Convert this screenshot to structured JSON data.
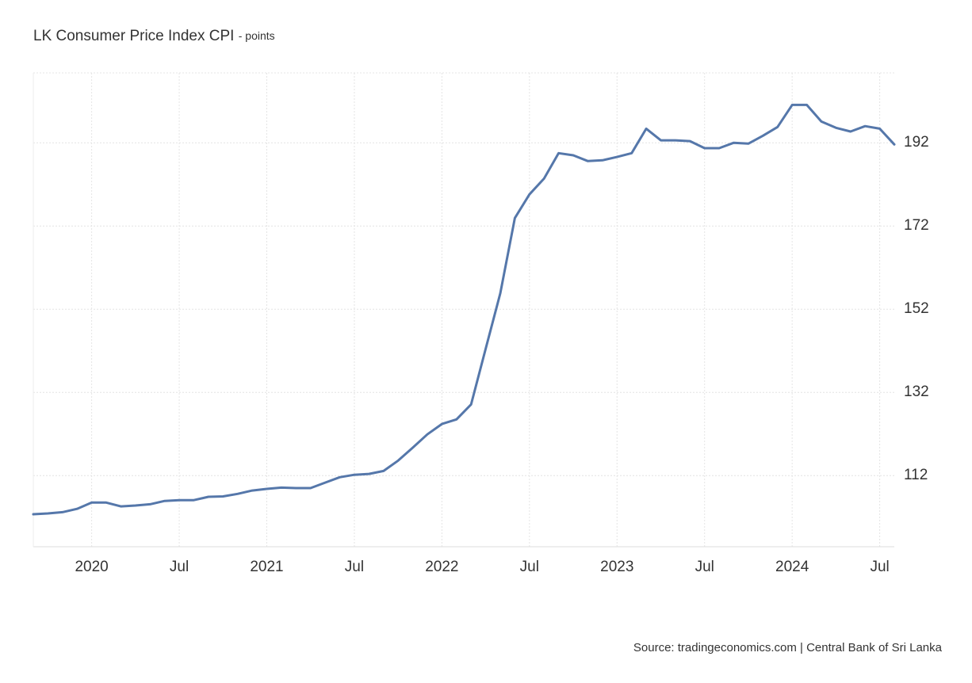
{
  "chart_data": {
    "type": "line",
    "title": "LK Consumer Price Index CPI",
    "subtitle": "- points",
    "source": "Source: tradingeconomics.com | Central Bank of Sri Lanka",
    "x": [
      "2019-09",
      "2019-10",
      "2019-11",
      "2019-12",
      "2020-01",
      "2020-02",
      "2020-03",
      "2020-04",
      "2020-05",
      "2020-06",
      "2020-07",
      "2020-08",
      "2020-09",
      "2020-10",
      "2020-11",
      "2020-12",
      "2021-01",
      "2021-02",
      "2021-03",
      "2021-04",
      "2021-05",
      "2021-06",
      "2021-07",
      "2021-08",
      "2021-09",
      "2021-10",
      "2021-11",
      "2021-12",
      "2022-01",
      "2022-02",
      "2022-03",
      "2022-04",
      "2022-05",
      "2022-06",
      "2022-07",
      "2022-08",
      "2022-09",
      "2022-10",
      "2022-11",
      "2022-12",
      "2023-01",
      "2023-02",
      "2023-03",
      "2023-04",
      "2023-05",
      "2023-06",
      "2023-07",
      "2023-08",
      "2023-09",
      "2023-10",
      "2023-11",
      "2023-12",
      "2024-01",
      "2024-02",
      "2024-03",
      "2024-04",
      "2024-05",
      "2024-06",
      "2024-07",
      "2024-08"
    ],
    "series": [
      {
        "name": "CPI",
        "color": "#5577aa",
        "values": [
          102.7,
          102.9,
          103.2,
          104.0,
          105.5,
          105.5,
          104.6,
          104.8,
          105.1,
          105.9,
          106.1,
          106.1,
          106.9,
          107.0,
          107.6,
          108.4,
          108.8,
          109.1,
          109.0,
          109.0,
          110.3,
          111.6,
          112.2,
          112.4,
          113.1,
          115.6,
          118.7,
          121.9,
          124.4,
          125.5,
          129.1,
          142.5,
          155.8,
          173.9,
          179.6,
          183.4,
          189.5,
          189.0,
          187.6,
          187.8,
          188.6,
          189.5,
          195.4,
          192.6,
          192.6,
          192.4,
          190.7,
          190.7,
          192.0,
          191.8,
          193.7,
          195.8,
          201.1,
          201.1,
          197.1,
          195.6,
          194.7,
          196.0,
          195.4,
          191.6
        ]
      }
    ],
    "xlim": [
      "2019-09",
      "2024-08"
    ],
    "xticks": [
      {
        "value": "2020-01",
        "label": "2020"
      },
      {
        "value": "2020-07",
        "label": "Jul"
      },
      {
        "value": "2021-01",
        "label": "2021"
      },
      {
        "value": "2021-07",
        "label": "Jul"
      },
      {
        "value": "2022-01",
        "label": "2022"
      },
      {
        "value": "2022-07",
        "label": "Jul"
      },
      {
        "value": "2023-01",
        "label": "2023"
      },
      {
        "value": "2023-07",
        "label": "Jul"
      },
      {
        "value": "2024-01",
        "label": "2024"
      },
      {
        "value": "2024-07",
        "label": "Jul"
      }
    ],
    "ylim": [
      94.9,
      208.8
    ],
    "yticks": [
      112,
      132,
      152,
      172,
      192
    ],
    "grid": true
  }
}
